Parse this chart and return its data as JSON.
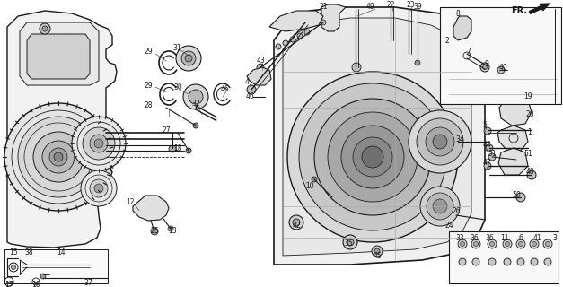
{
  "bg_color": "#ffffff",
  "line_color": "#1a1a1a",
  "fig_width": 6.27,
  "fig_height": 3.2,
  "dpi": 100
}
